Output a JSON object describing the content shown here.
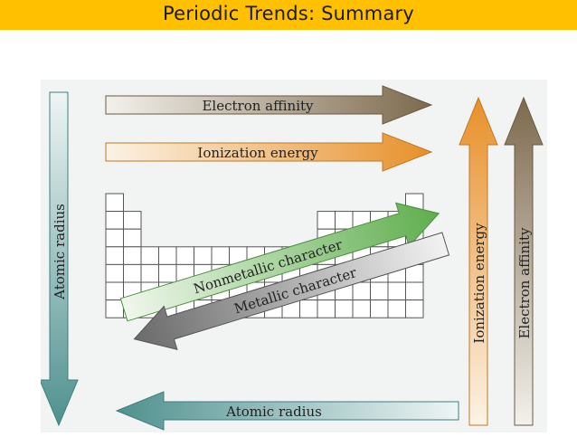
{
  "slide": {
    "title": "Periodic Trends: Summary"
  },
  "diagram": {
    "arrows": {
      "electron_affinity_horizontal": "Electron affinity",
      "ionization_energy_horizontal": "Ionization energy",
      "atomic_radius_vertical": "Atomic radius",
      "atomic_radius_horizontal": "Atomic radius",
      "ionization_energy_vertical": "Ionization energy",
      "electron_affinity_vertical": "Electron affinity",
      "nonmetallic_character": "Nonmetallic character",
      "metallic_character": "Metallic character"
    },
    "colors": {
      "background": "#f2f3f3",
      "title_bar": "#ffc000",
      "electron_affinity": "#8a7555",
      "ionization_energy": "#e89a3a",
      "atomic_radius": "#5f9e9c",
      "nonmetallic": "#7fbf6e",
      "metallic": "#7a7a7a",
      "grid": "#555555"
    }
  }
}
